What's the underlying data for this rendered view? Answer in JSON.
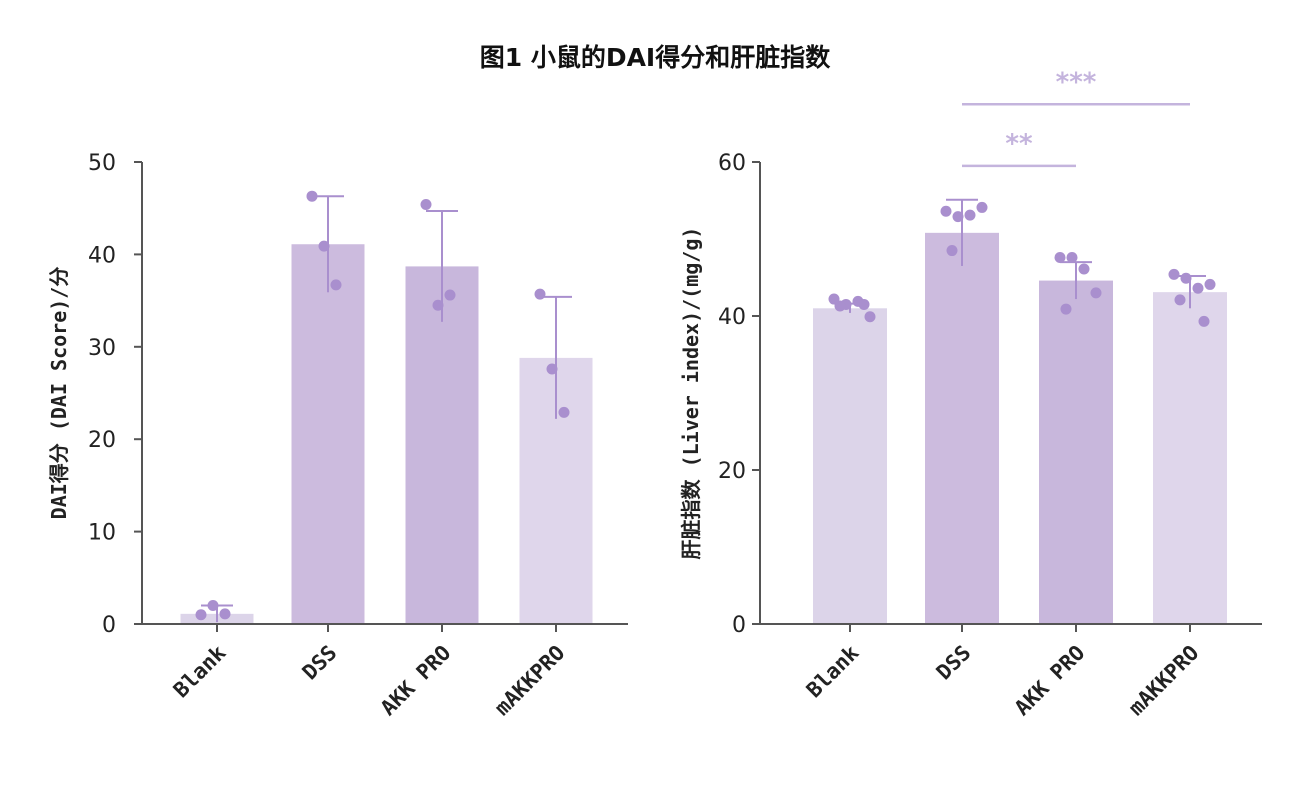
{
  "figure_title": "图1 小鼠的DAI得分和肝脏指数",
  "colors": {
    "bar_blank": "#dad2e8",
    "bar_dss": "#c9b7dc",
    "bar_akk": "#c5b3da",
    "bar_makk": "#ddd4ea",
    "point": "#a98fce",
    "axis": "#555555",
    "sig": "#c4b4dd"
  },
  "chart_data": [
    {
      "type": "bar",
      "ylabel": "DAI得分 (DAI Score)/分",
      "ylim": [
        0,
        50
      ],
      "yticks": [
        0,
        10,
        20,
        30,
        40,
        50
      ],
      "categories": [
        "Blank",
        "DSS",
        "AKK PRO",
        "mAKKPRO"
      ],
      "values": [
        1.1,
        41.1,
        38.7,
        28.8
      ],
      "error": [
        0.9,
        5.2,
        6.0,
        6.6
      ],
      "points": [
        [
          1.0,
          2.0,
          1.1
        ],
        [
          46.3,
          40.9,
          36.7
        ],
        [
          45.4,
          34.5,
          35.6
        ],
        [
          35.7,
          27.6,
          22.9
        ]
      ]
    },
    {
      "type": "bar",
      "ylabel": "肝脏指数 (Liver index)/(mg/g)",
      "ylim": [
        0,
        60
      ],
      "yticks": [
        0,
        20,
        40,
        60
      ],
      "categories": [
        "Blank",
        "DSS",
        "AKK PRO",
        "mAKKPRO"
      ],
      "values": [
        41.0,
        50.8,
        44.6,
        43.1
      ],
      "error": [
        0.6,
        4.3,
        2.4,
        2.1
      ],
      "points": [
        [
          42.2,
          41.5,
          41.9,
          39.9,
          41.3,
          41.5
        ],
        [
          53.6,
          52.9,
          53.1,
          54.1,
          48.5
        ],
        [
          47.6,
          47.6,
          46.1,
          43.0,
          40.9
        ],
        [
          45.4,
          44.9,
          43.6,
          44.1,
          42.1,
          39.3
        ]
      ],
      "significance": [
        {
          "from": 1,
          "to": 2,
          "label": "**",
          "y": 59.5
        },
        {
          "from": 1,
          "to": 3,
          "label": "***",
          "y": 67.5
        }
      ]
    }
  ]
}
